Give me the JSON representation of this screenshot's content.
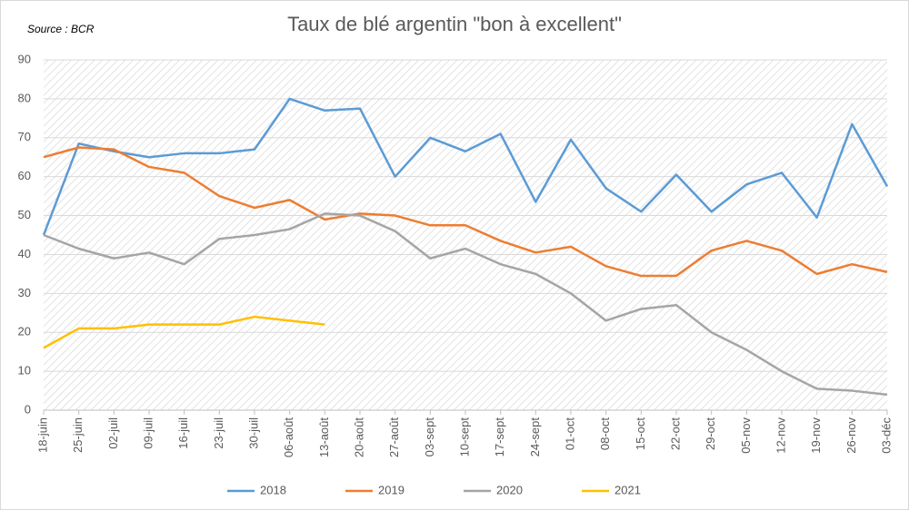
{
  "chart_data": {
    "type": "line",
    "title": "Taux de blé argentin \"bon à excellent\"",
    "source": "Source : BCR",
    "categories": [
      "18-juin",
      "25-juin",
      "02-juil",
      "09-juil",
      "16-juil",
      "23-juil",
      "30-juil",
      "06-août",
      "13-août",
      "20-août",
      "27-août",
      "03-sept",
      "10-sept",
      "17-sept",
      "24-sept",
      "01-oct",
      "08-oct",
      "15-oct",
      "22-oct",
      "29-oct",
      "05-nov",
      "12-nov",
      "19-nov",
      "26-nov",
      "03-déc"
    ],
    "series": [
      {
        "name": "2018",
        "color": "#5b9bd5",
        "values": [
          45,
          68.5,
          66.5,
          65,
          66,
          66,
          67,
          80,
          77,
          77.5,
          60,
          70,
          66.5,
          71,
          53.5,
          69.5,
          57,
          51,
          60.5,
          51,
          58,
          61,
          49.5,
          73.5,
          57.5
        ]
      },
      {
        "name": "2019",
        "color": "#ed7d31",
        "values": [
          65,
          67.5,
          67,
          62.5,
          61,
          55,
          52,
          54,
          49,
          50.5,
          50,
          47.5,
          47.5,
          43.5,
          40.5,
          42,
          37,
          34.5,
          34.5,
          41,
          43.5,
          41,
          35,
          37.5,
          35.5
        ]
      },
      {
        "name": "2020",
        "color": "#a5a5a5",
        "values": [
          45,
          41.5,
          39,
          40.5,
          37.5,
          44,
          45,
          46.5,
          50.5,
          50,
          46,
          39,
          41.5,
          37.5,
          35,
          30,
          23,
          26,
          27,
          20,
          15.5,
          10,
          5.5,
          5,
          4
        ]
      },
      {
        "name": "2021",
        "color": "#ffc000",
        "values": [
          16,
          21,
          21,
          22,
          22,
          22,
          24,
          23,
          22,
          null,
          null,
          null,
          null,
          null,
          null,
          null,
          null,
          null,
          null,
          null,
          null,
          null,
          null,
          null,
          null
        ]
      }
    ],
    "ylim": [
      0,
      90
    ],
    "yticks": [
      0,
      10,
      20,
      30,
      40,
      50,
      60,
      70,
      80,
      90
    ],
    "grid": true,
    "legend": "bottom"
  }
}
